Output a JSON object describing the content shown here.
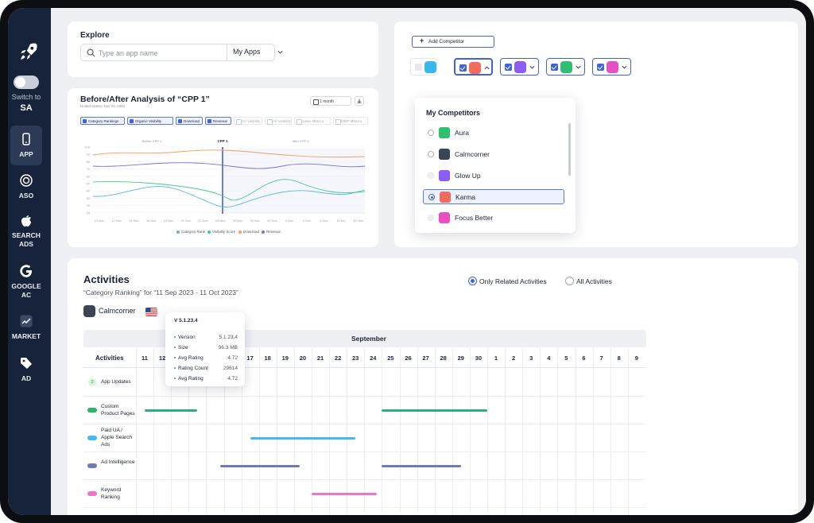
{
  "sidebar": {
    "switch_label": "Switch to",
    "switch_target": "SA",
    "items": [
      {
        "label": "APP",
        "icon": "phone-icon",
        "active": true
      },
      {
        "label": "ASO",
        "icon": "target-icon"
      },
      {
        "label": "SEARCH ADS",
        "icon": "apple-icon"
      },
      {
        "label": "GOOGLE AC",
        "icon": "google-icon"
      },
      {
        "label": "MARKET",
        "icon": "trend-icon"
      },
      {
        "label": "AD",
        "icon": "tag-icon"
      }
    ]
  },
  "explore": {
    "title": "Explore",
    "search_placeholder": "Type an app name",
    "filter_label": "My Apps"
  },
  "analysis": {
    "title": "Before/After Analysis of “CPP 1”",
    "subtitle": "United States, Nov 24, 2023",
    "period": "1 month",
    "filters": [
      {
        "label": "Category Rankings",
        "on": true
      },
      {
        "label": "Organic Visibility",
        "on": true
      },
      {
        "label": "Download",
        "on": true
      },
      {
        "label": "Revenue",
        "on": true
      },
      {
        "label": "SA Visibility",
        "on": false
      },
      {
        "label": "Ad Visibility",
        "on": false
      },
      {
        "label": "Sales Metrics",
        "on": false
      },
      {
        "label": "MMP Metrics",
        "on": false
      }
    ],
    "markers": {
      "before": "Before CPP 1",
      "event": "CPP 1",
      "after": "After CPP 1"
    },
    "y_ticks": [
      "100",
      "90",
      "80",
      "70",
      "60",
      "50",
      "40",
      "30",
      "20",
      "10"
    ],
    "x_ticks": [
      "10 Nov",
      "12 Nov",
      "14 Nov",
      "16 Nov",
      "18 Nov",
      "20 Nov",
      "22 Nov",
      "24 Nov",
      "26 Nov",
      "28 Nov",
      "30 Nov",
      "2 Dec",
      "4 Dec",
      "6 Dec",
      "8 Dec",
      "10 Dec"
    ],
    "legend": [
      {
        "label": "Category Rank",
        "color": "#5ab4e6"
      },
      {
        "label": "Visibility Score",
        "color": "#49c98a"
      },
      {
        "label": "Download",
        "color": "#f0a060"
      },
      {
        "label": "Revenue",
        "color": "#7a6fd6"
      }
    ]
  },
  "competitors": {
    "add_label": "Add Competitor",
    "dropdown_title": "My Competitors",
    "options": [
      {
        "name": "Aura",
        "color": "#2fbf71",
        "selected": false
      },
      {
        "name": "Calmcorner",
        "color": "#3b4556",
        "selected": false
      },
      {
        "name": "Glow Up",
        "color": "#8b5cf6",
        "selected": false
      },
      {
        "name": "Karma",
        "color": "#f26b5b",
        "selected": true
      },
      {
        "name": "Focus Better",
        "color": "#e84fc5",
        "selected": false
      }
    ]
  },
  "activities": {
    "title": "Activities",
    "subtitle": "“Category Ranking” for  “11 Sep 2023 - 11 Oct 2023”",
    "radio_related": "Only Related Activities",
    "radio_all": "All Activities",
    "app_name": "Calmcorner",
    "month": "September",
    "column_label": "Activities",
    "days": [
      "11",
      "12",
      "13",
      "14",
      "15",
      "16",
      "17",
      "18",
      "19",
      "20",
      "21",
      "22",
      "23",
      "24",
      "25",
      "26",
      "27",
      "28",
      "29",
      "30",
      "1",
      "2",
      "3",
      "4",
      "5",
      "6",
      "7",
      "8",
      "9"
    ],
    "rows": [
      {
        "label": "App Updates",
        "type": "count",
        "count": "2",
        "color": "#2aa356"
      },
      {
        "label": "Custom Product Pages",
        "color": "#2bb36b",
        "bars": [
          [
            0.5,
            3.5
          ],
          [
            14,
            20
          ]
        ]
      },
      {
        "label": "Paid UA / Apple Search Ads",
        "color": "#47b8ea",
        "bars": [
          [
            6.5,
            12.5
          ]
        ]
      },
      {
        "label": "Ad Intelligence",
        "color": "#6f7bb8",
        "bars": [
          [
            4.8,
            9.3
          ],
          [
            14,
            18.5
          ]
        ]
      },
      {
        "label": "Keyword Ranking",
        "color": "#e878c9",
        "bars": [
          [
            10,
            13.7
          ]
        ]
      }
    ],
    "tooltip": {
      "version": "V 5.1.23.4",
      "rows": [
        {
          "k": "Version",
          "v": "5.1.23.4"
        },
        {
          "k": "Size",
          "v": "96.3 MB"
        },
        {
          "k": "Avg Rating",
          "v": "4.72"
        },
        {
          "k": "Rating Count",
          "v": "29614"
        },
        {
          "k": "Avg Rating",
          "v": "4.72"
        }
      ]
    }
  }
}
